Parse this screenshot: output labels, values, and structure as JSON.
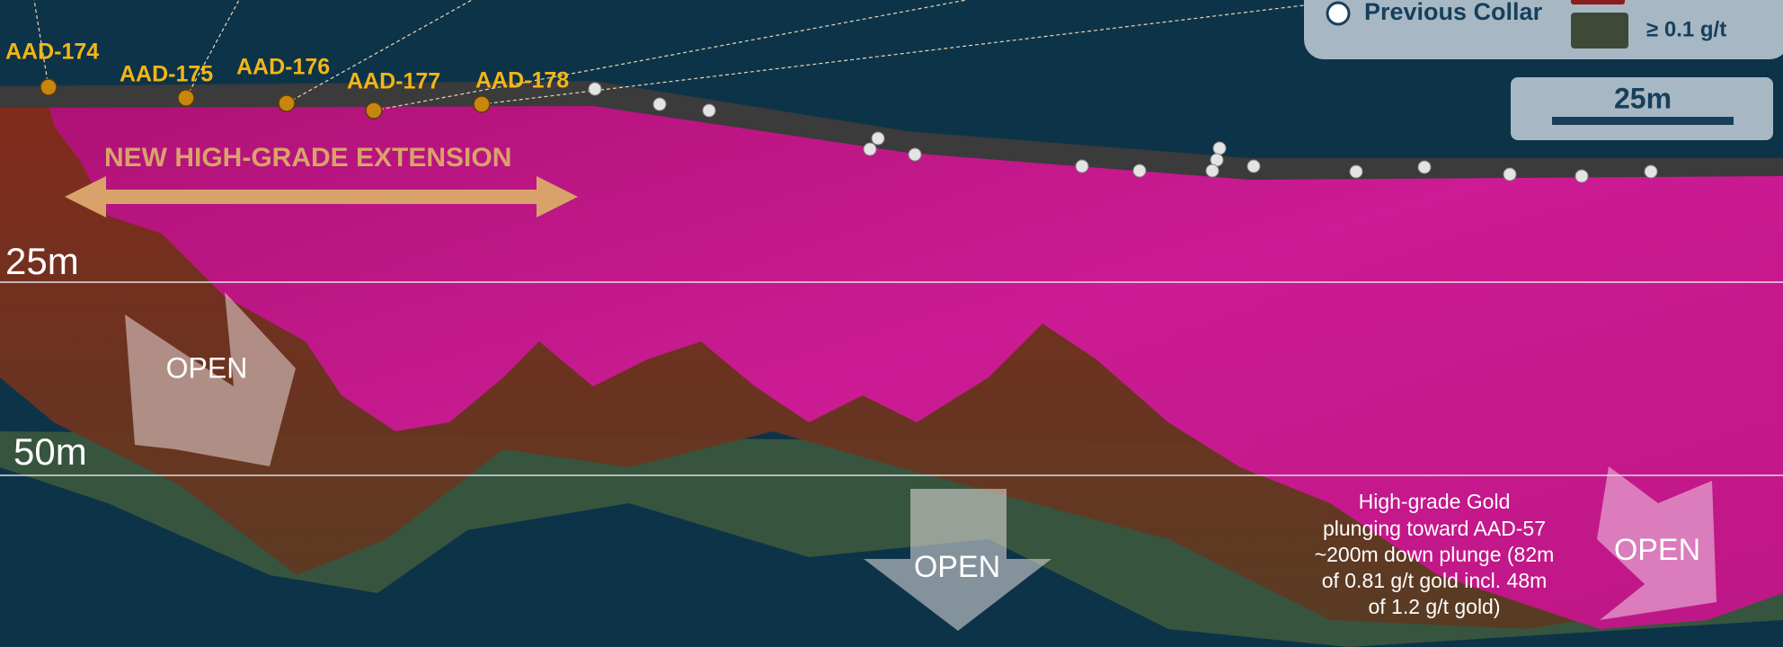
{
  "holes": [
    "AAD-174",
    "AAD-175",
    "AAD-176",
    "AAD-177",
    "AAD-178"
  ],
  "headline": "NEW HIGH-GRADE EXTENSION",
  "depth_labels": [
    "25m",
    "50m"
  ],
  "open_labels": [
    "OPEN",
    "OPEN",
    "OPEN"
  ],
  "annotation": [
    "High-grade Gold",
    "plunging toward AAD-57",
    "~200m down plunge (82m",
    "of 0.81 g/t gold incl. 48m",
    "of 1.2 g/t gold)"
  ],
  "legend": {
    "collar": "Previous Collar",
    "grade": "≥ 0.1 g/t"
  },
  "scale_bar": "25m"
}
